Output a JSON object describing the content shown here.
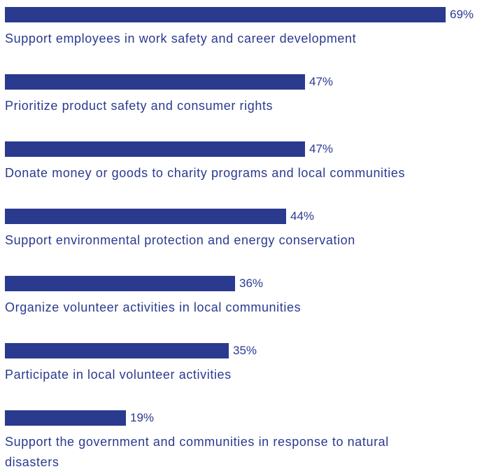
{
  "chart_data": {
    "type": "bar",
    "orientation": "horizontal",
    "categories": [
      "Support employees in work safety and career development",
      "Prioritize product safety and consumer rights",
      "Donate money or goods to charity programs and local communities",
      "Support environmental protection and energy conservation",
      "Organize volunteer activities in local communities",
      "Participate in local volunteer activities",
      "Support the government and communities in response to natural disasters"
    ],
    "values": [
      69,
      47,
      47,
      44,
      36,
      35,
      19
    ],
    "value_labels": [
      "69%",
      "47%",
      "47%",
      "44%",
      "36%",
      "35%",
      "19%"
    ],
    "unit": "%",
    "grid": false,
    "legend": "none",
    "bar_color": "#2a3a8f",
    "text_color": "#2a3a8f"
  }
}
